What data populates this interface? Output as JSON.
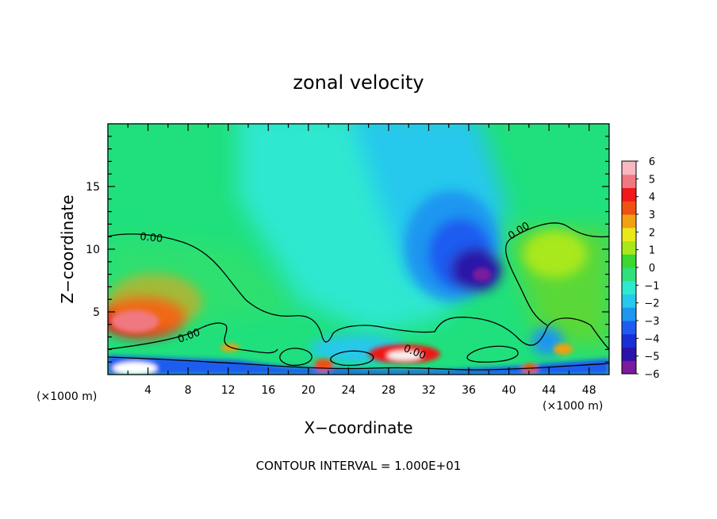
{
  "chart_data": {
    "type": "heatmap",
    "title": "zonal velocity",
    "xlabel": "X−coordinate",
    "ylabel": "Z−coordinate",
    "x_unit_left": "(×1000 m)",
    "x_unit_right": "(×1000 m)",
    "footer": "CONTOUR INTERVAL = 1.000E+01",
    "xlim": [
      0,
      50
    ],
    "ylim": [
      0,
      20
    ],
    "x_ticks": [
      4,
      8,
      12,
      16,
      20,
      24,
      28,
      32,
      36,
      40,
      44,
      48
    ],
    "x_tick_labels": [
      "4",
      "8",
      "12",
      "16",
      "20",
      "24",
      "28",
      "32",
      "36",
      "40",
      "44",
      "48"
    ],
    "y_ticks": [
      5,
      10,
      15
    ],
    "y_tick_labels": [
      "5",
      "10",
      "15"
    ],
    "contour_labels": [
      "0.00",
      "0.00",
      "0.00",
      "0.00"
    ],
    "colorbar": {
      "min": -6,
      "max": 6,
      "tick_labels": [
        "6",
        "5",
        "4",
        "3",
        "2",
        "1",
        "0",
        "−1",
        "−2",
        "−3",
        "−4",
        "−5",
        "−6"
      ],
      "colors": [
        "#7a1a9c",
        "#2a13a8",
        "#1a2ed8",
        "#1f5bf0",
        "#1d96f0",
        "#26c8ec",
        "#2ee8d0",
        "#30e07a",
        "#3ad830",
        "#a8e81a",
        "#e8e81a",
        "#f0a010",
        "#f05010",
        "#f01818",
        "#f07880",
        "#f8b8c0"
      ]
    },
    "features": [
      {
        "value": 5.5,
        "x": 4.5,
        "z": 4.5
      },
      {
        "value": -5.8,
        "x": 37.5,
        "z": 8.0
      },
      {
        "value": -3.0,
        "x": 34,
        "z": 13.0
      },
      {
        "value": 1.5,
        "x": 45.5,
        "z": 9.5
      },
      {
        "value": 6.5,
        "x": 30,
        "z": 1.5
      }
    ],
    "grid": false
  }
}
